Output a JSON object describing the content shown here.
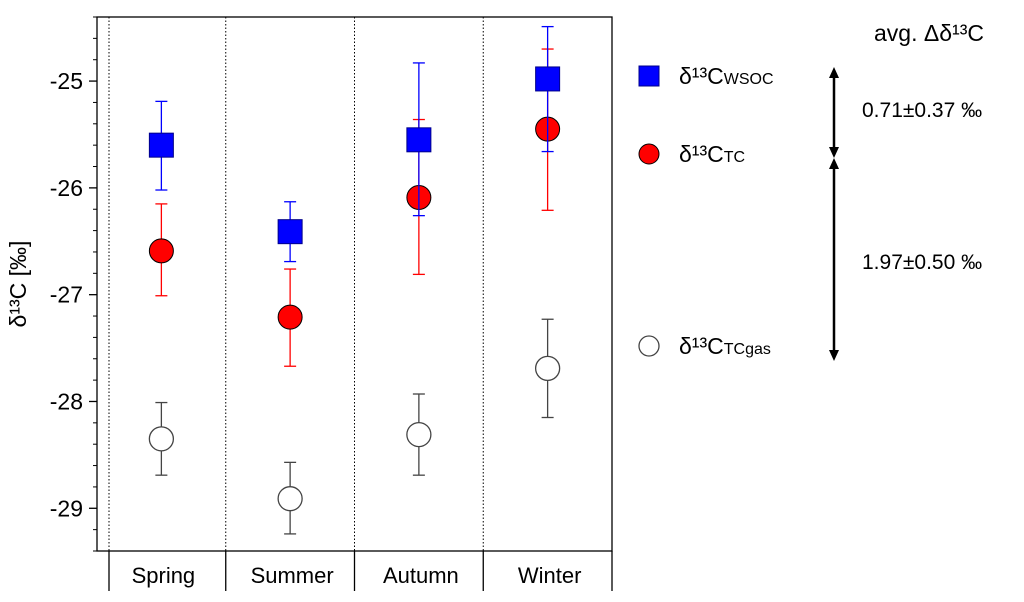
{
  "chart_data": {
    "type": "scatter",
    "categories": [
      "Spring",
      "Summer",
      "Autumn",
      "Winter"
    ],
    "ylabel_main": "δ¹³C [‰]",
    "ylim": [
      -29.4,
      -24.4
    ],
    "yticks": [
      -25,
      -26,
      -27,
      -28,
      -29
    ],
    "ytick_labels": [
      "-25",
      "-26",
      "-27",
      "-28",
      "-29"
    ],
    "series": [
      {
        "name": "δ¹³CWSOC",
        "name_main": "δ¹³C",
        "name_sub": "WSOC",
        "marker": "square",
        "color": "#0000ff",
        "values": [
          -25.6,
          -26.41,
          -25.55,
          -24.98
        ],
        "err_low": [
          -26.02,
          -26.69,
          -26.26,
          -25.66
        ],
        "err_high": [
          -25.19,
          -26.13,
          -24.83,
          -24.49
        ]
      },
      {
        "name": "δ¹³CTC",
        "name_main": "δ¹³C",
        "name_sub": "TC",
        "marker": "circle",
        "color": "#ff0000",
        "values": [
          -26.59,
          -27.21,
          -26.09,
          -25.45
        ],
        "err_low": [
          -27.01,
          -27.67,
          -26.81,
          -26.21
        ],
        "err_high": [
          -26.15,
          -26.76,
          -25.36,
          -24.7
        ]
      },
      {
        "name": "δ¹³CTCgas",
        "name_main": "δ¹³C",
        "name_sub": "TCgas",
        "marker": "open-circle",
        "color": "#444444",
        "values": [
          -28.35,
          -28.91,
          -28.31,
          -27.69
        ],
        "err_low": [
          -28.69,
          -29.24,
          -28.69,
          -28.15
        ],
        "err_high": [
          -28.01,
          -28.57,
          -27.93,
          -27.23
        ]
      }
    ],
    "annotation_title": "avg. Δδ¹³C",
    "annotations": [
      "0.71±0.37 ‰",
      "1.97±0.50 ‰"
    ],
    "grid": "vertical dotted separators between categories"
  }
}
